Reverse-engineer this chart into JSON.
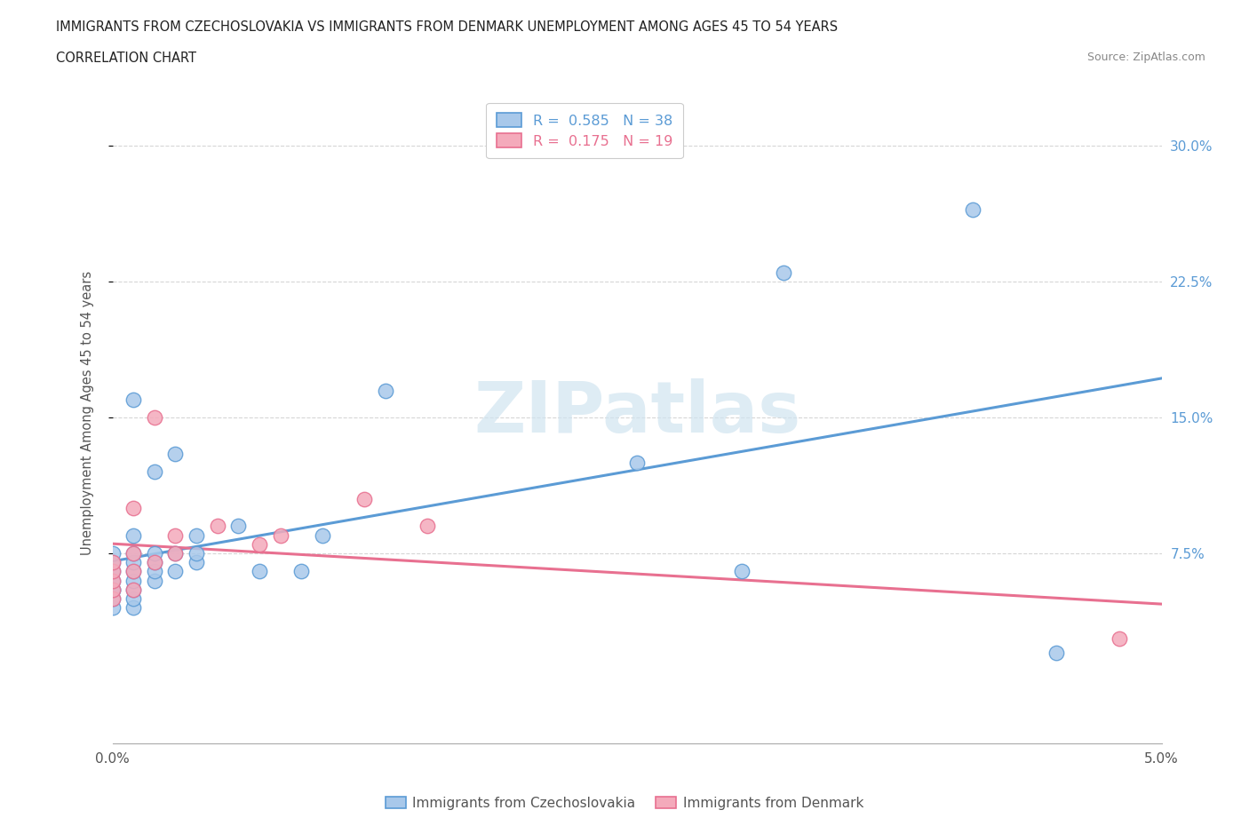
{
  "title_line1": "IMMIGRANTS FROM CZECHOSLOVAKIA VS IMMIGRANTS FROM DENMARK UNEMPLOYMENT AMONG AGES 45 TO 54 YEARS",
  "title_line2": "CORRELATION CHART",
  "source_text": "Source: ZipAtlas.com",
  "ylabel": "Unemployment Among Ages 45 to 54 years",
  "xlim": [
    0.0,
    0.05
  ],
  "ylim": [
    -0.03,
    0.335
  ],
  "yticks": [
    0.075,
    0.15,
    0.225,
    0.3
  ],
  "ytick_labels": [
    "7.5%",
    "15.0%",
    "22.5%",
    "30.0%"
  ],
  "xticks": [
    0.0,
    0.005,
    0.01,
    0.015,
    0.02,
    0.025,
    0.03,
    0.035,
    0.04,
    0.045,
    0.05
  ],
  "xtick_labels": [
    "0.0%",
    "",
    "",
    "",
    "",
    "",
    "",
    "",
    "",
    "",
    "5.0%"
  ],
  "color_blue": "#A8C8EA",
  "color_pink": "#F4AABB",
  "color_blue_line": "#5B9BD5",
  "color_pink_line": "#E87090",
  "watermark_color": "#D0E4F0",
  "cs_x": [
    0.0,
    0.0,
    0.0,
    0.0,
    0.0,
    0.0,
    0.0,
    0.0,
    0.001,
    0.001,
    0.001,
    0.001,
    0.001,
    0.001,
    0.001,
    0.001,
    0.001,
    0.002,
    0.002,
    0.002,
    0.002,
    0.002,
    0.003,
    0.003,
    0.003,
    0.004,
    0.004,
    0.004,
    0.006,
    0.007,
    0.009,
    0.01,
    0.013,
    0.025,
    0.03,
    0.032,
    0.041,
    0.045
  ],
  "cs_y": [
    0.045,
    0.05,
    0.055,
    0.055,
    0.06,
    0.065,
    0.07,
    0.075,
    0.045,
    0.05,
    0.055,
    0.06,
    0.065,
    0.07,
    0.075,
    0.085,
    0.16,
    0.06,
    0.065,
    0.07,
    0.075,
    0.12,
    0.065,
    0.075,
    0.13,
    0.07,
    0.075,
    0.085,
    0.09,
    0.065,
    0.065,
    0.085,
    0.165,
    0.125,
    0.065,
    0.23,
    0.265,
    0.02
  ],
  "dk_x": [
    0.0,
    0.0,
    0.0,
    0.0,
    0.0,
    0.001,
    0.001,
    0.001,
    0.001,
    0.002,
    0.002,
    0.003,
    0.003,
    0.005,
    0.007,
    0.008,
    0.012,
    0.015,
    0.048
  ],
  "dk_y": [
    0.05,
    0.055,
    0.06,
    0.065,
    0.07,
    0.055,
    0.065,
    0.075,
    0.1,
    0.07,
    0.15,
    0.075,
    0.085,
    0.09,
    0.08,
    0.085,
    0.105,
    0.09,
    0.028
  ],
  "background_color": "#FFFFFF",
  "grid_color": "#CCCCCC"
}
